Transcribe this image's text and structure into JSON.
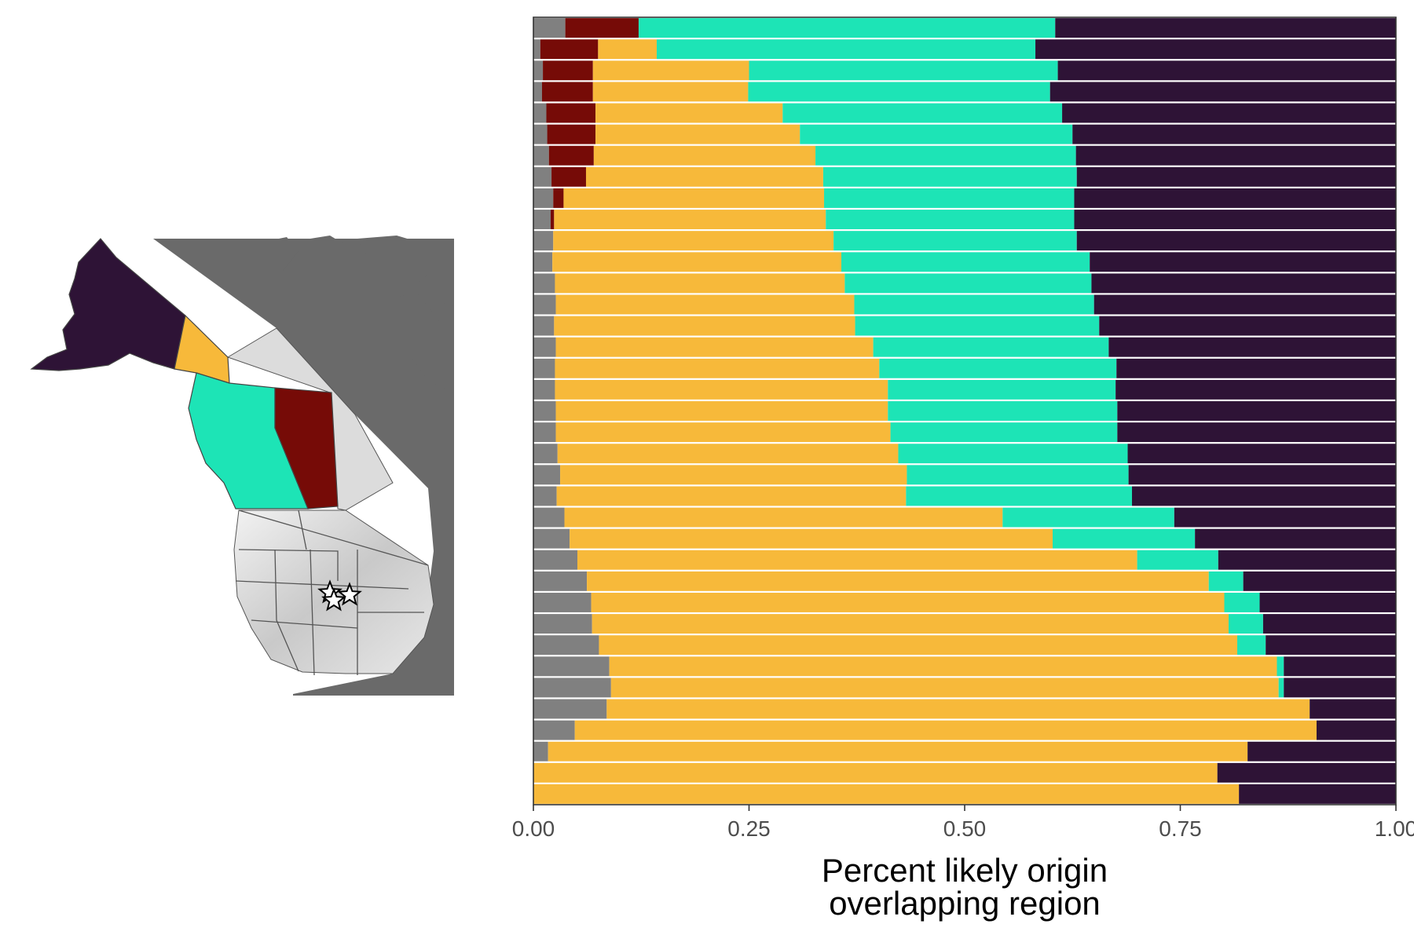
{
  "colors": {
    "gray": "#808080",
    "darkred": "#760b07",
    "yellow": "#f7b93a",
    "teal": "#1de4b6",
    "purple": "#2e1336",
    "map_gray": "#6a6a6a",
    "map_light": "#dcdcdc"
  },
  "chart_data": {
    "type": "bar",
    "orientation": "horizontal",
    "stacked": true,
    "xlabel": "Percent likely origin\noverlapping region",
    "xlim": [
      0,
      1
    ],
    "xticks": [
      "0.00",
      "0.25",
      "0.50",
      "0.75",
      "1.00"
    ],
    "ylabel": "",
    "grid": false,
    "legend": "none",
    "series_colors": [
      "gray",
      "darkred",
      "yellow",
      "teal",
      "purple"
    ],
    "rows": [
      [
        0.037,
        0.085,
        0.0,
        0.483,
        0.395
      ],
      [
        0.008,
        0.067,
        0.068,
        0.439,
        0.418
      ],
      [
        0.011,
        0.058,
        0.181,
        0.358,
        0.392
      ],
      [
        0.01,
        0.059,
        0.18,
        0.35,
        0.401
      ],
      [
        0.015,
        0.057,
        0.217,
        0.324,
        0.387
      ],
      [
        0.016,
        0.056,
        0.237,
        0.316,
        0.375
      ],
      [
        0.018,
        0.052,
        0.257,
        0.302,
        0.371
      ],
      [
        0.021,
        0.04,
        0.275,
        0.294,
        0.37
      ],
      [
        0.023,
        0.012,
        0.302,
        0.29,
        0.373
      ],
      [
        0.02,
        0.004,
        0.315,
        0.288,
        0.373
      ],
      [
        0.023,
        0.0,
        0.325,
        0.282,
        0.37
      ],
      [
        0.022,
        0.0,
        0.335,
        0.288,
        0.355
      ],
      [
        0.025,
        0.0,
        0.336,
        0.286,
        0.353
      ],
      [
        0.026,
        0.0,
        0.346,
        0.278,
        0.35
      ],
      [
        0.024,
        0.0,
        0.349,
        0.283,
        0.344
      ],
      [
        0.026,
        0.0,
        0.368,
        0.273,
        0.333
      ],
      [
        0.025,
        0.0,
        0.376,
        0.275,
        0.324
      ],
      [
        0.025,
        0.0,
        0.386,
        0.264,
        0.325
      ],
      [
        0.026,
        0.0,
        0.385,
        0.266,
        0.323
      ],
      [
        0.026,
        0.0,
        0.388,
        0.263,
        0.323
      ],
      [
        0.028,
        0.0,
        0.395,
        0.266,
        0.311
      ],
      [
        0.031,
        0.0,
        0.402,
        0.257,
        0.31
      ],
      [
        0.027,
        0.0,
        0.405,
        0.262,
        0.306
      ],
      [
        0.036,
        0.0,
        0.508,
        0.199,
        0.257
      ],
      [
        0.042,
        0.0,
        0.56,
        0.165,
        0.233
      ],
      [
        0.051,
        0.0,
        0.649,
        0.094,
        0.206
      ],
      [
        0.062,
        0.0,
        0.721,
        0.04,
        0.177
      ],
      [
        0.067,
        0.0,
        0.734,
        0.041,
        0.158
      ],
      [
        0.068,
        0.0,
        0.738,
        0.04,
        0.154
      ],
      [
        0.076,
        0.0,
        0.74,
        0.033,
        0.151
      ],
      [
        0.088,
        0.0,
        0.774,
        0.008,
        0.13
      ],
      [
        0.09,
        0.0,
        0.774,
        0.006,
        0.13
      ],
      [
        0.085,
        0.0,
        0.815,
        0.0,
        0.1
      ],
      [
        0.048,
        0.0,
        0.86,
        0.0,
        0.092
      ],
      [
        0.017,
        0.0,
        0.811,
        0.0,
        0.172
      ],
      [
        0.0,
        0.0,
        0.793,
        0.0,
        0.207
      ],
      [
        0.0,
        0.0,
        0.818,
        0.0,
        0.182
      ]
    ]
  },
  "map": {
    "region_colors": {
      "alaska": "purple",
      "yukon": "yellow",
      "british_columbia": "teal",
      "alberta": "darkred",
      "background": "map_gray",
      "study_area": "map_light"
    },
    "markers": [
      "star",
      "star",
      "star"
    ]
  }
}
